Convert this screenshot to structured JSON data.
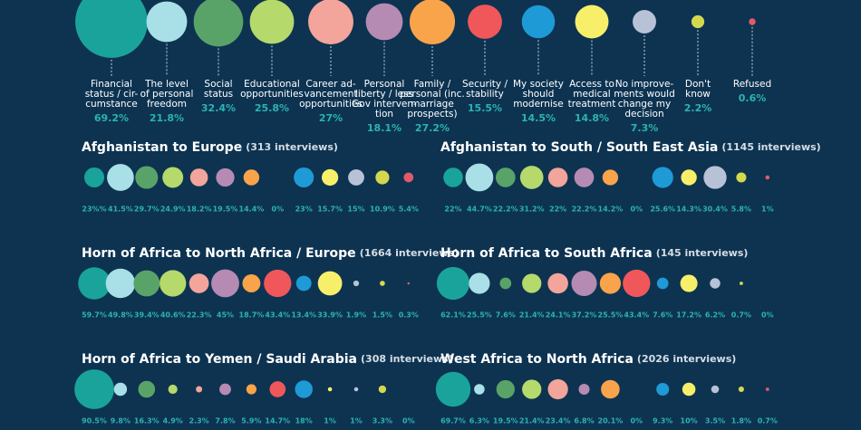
{
  "chart_data": {
    "type": "bubble",
    "categories": [
      [
        "Financial",
        "status / cir-",
        "cumstance"
      ],
      [
        "The level",
        "of personal",
        "freedom"
      ],
      [
        "Social",
        "status"
      ],
      [
        "Educational",
        "opportunities"
      ],
      [
        "Career ad-",
        "vancement",
        "opportunities"
      ],
      [
        "Personal",
        "liberty / less",
        "Gov interven-",
        "tion"
      ],
      [
        "Family /",
        "personal (inc.",
        "marriage",
        "prospects)"
      ],
      [
        "Security /",
        "stability"
      ],
      [
        "My society",
        "should",
        "modernise"
      ],
      [
        "Access to",
        "medical",
        "treatment"
      ],
      [
        "No improve-",
        "ments would",
        "change my",
        "decision"
      ],
      [
        "Don't",
        "know"
      ],
      [
        "Refused"
      ]
    ],
    "colors": [
      "#1aa39b",
      "#a9dfe6",
      "#5aa368",
      "#b5d96b",
      "#f3a49b",
      "#b58bb3",
      "#f9a34a",
      "#f0575a",
      "#1e9ad6",
      "#f7ef6a",
      "#b8c2d6",
      "#d4d84d",
      "#e05a6a"
    ],
    "values": [
      69.2,
      21.8,
      32.4,
      25.8,
      27,
      18.1,
      27.2,
      15.5,
      14.5,
      14.8,
      7.3,
      2.2,
      0.6
    ],
    "value_labels": [
      "69.2%",
      "21.8%",
      "32.4%",
      "25.8%",
      "27%",
      "18.1%",
      "27.2%",
      "15.5%",
      "14.5%",
      "14.8%",
      "7.3%",
      "2.2%",
      "0.6%"
    ],
    "panels": [
      {
        "title": "Afghanistan to Europe",
        "subtitle": "(313 interviews)",
        "values": [
          23,
          41.5,
          29.7,
          24.9,
          18.2,
          19.5,
          14.4,
          0,
          23,
          15.7,
          15,
          10.9,
          5.4
        ],
        "value_labels": [
          "23%%",
          "41.5%",
          "29.7%",
          "24.9%",
          "18.2%",
          "19.5%",
          "14.4%",
          "0%",
          "23%",
          "15.7%",
          "15%",
          "10.9%",
          "5.4%"
        ]
      },
      {
        "title": "Afghanistan to South / South East Asia",
        "subtitle": "(1145 interviews)",
        "values": [
          22,
          44.7,
          22.2,
          31.2,
          22,
          22.2,
          14.2,
          0,
          25.6,
          14.3,
          30.4,
          5.8,
          1
        ],
        "value_labels": [
          "22%",
          "44.7%",
          "22.2%",
          "31.2%",
          "22%",
          "22.2%",
          "14.2%",
          "0%",
          "25.6%",
          "14.3%",
          "30.4%",
          "5.8%",
          "1%"
        ]
      },
      {
        "title": "Horn of Africa to North Africa / Europe",
        "subtitle": "(1664 interviews)",
        "values": [
          59.7,
          49.8,
          39.4,
          40.6,
          22.3,
          45,
          18.7,
          43.4,
          13.4,
          33.9,
          1.9,
          1.5,
          0.3
        ],
        "value_labels": [
          "59.7%",
          "49.8%",
          "39.4%",
          "40.6%",
          "22.3%",
          "45%",
          "18.7%",
          "43.4%",
          "13.4%",
          "33.9%",
          "1.9%",
          "1.5%",
          "0.3%"
        ]
      },
      {
        "title": "Horn of Africa to South Africa",
        "subtitle": "(145 interviews)",
        "values": [
          62.1,
          25.5,
          7.6,
          21.4,
          24.1,
          37.2,
          25.5,
          43.4,
          7.6,
          17.2,
          6.2,
          0.7,
          0
        ],
        "value_labels": [
          "62.1%",
          "25.5%",
          "7.6%",
          "21.4%",
          "24.1%",
          "37.2%",
          "25.5%",
          "43.4%",
          "7.6%",
          "17.2%",
          "6.2%",
          "0.7%",
          "0%"
        ]
      },
      {
        "title": "Horn of Africa to Yemen / Saudi Arabia",
        "subtitle": "(308 interviews)",
        "values": [
          90.5,
          9.8,
          16.3,
          4.9,
          2.3,
          7.8,
          5.9,
          14.7,
          18,
          1,
          1,
          3.3,
          0
        ],
        "value_labels": [
          "90.5%",
          "9.8%",
          "16.3%",
          "4.9%",
          "2.3%",
          "7.8%",
          "5.9%",
          "14.7%",
          "18%",
          "1%",
          "1%",
          "3.3%",
          "0%"
        ]
      },
      {
        "title": "West Africa to North Africa",
        "subtitle": "(2026 interviews)",
        "values": [
          69.7,
          6.3,
          19.5,
          21.4,
          23.4,
          6.8,
          20.1,
          0,
          9.3,
          10,
          3.5,
          1.8,
          0.7
        ],
        "value_labels": [
          "69.7%",
          "6.3%",
          "19.5%",
          "21.4%",
          "23.4%",
          "6.8%",
          "20.1%",
          "0%",
          "9.3%",
          "10%",
          "3.5%",
          "1.8%",
          "0.7%"
        ]
      }
    ]
  }
}
